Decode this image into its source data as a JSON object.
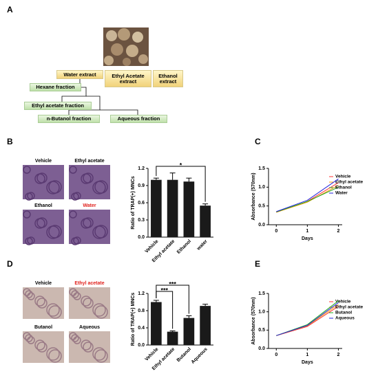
{
  "panel_labels": [
    "A",
    "B",
    "C",
    "D",
    "E"
  ],
  "diagram": {
    "nodes": [
      {
        "label": "Water extract",
        "kind": "extract"
      },
      {
        "label": "Ethyl Acetate extract",
        "kind": "extract"
      },
      {
        "label": "Ethanol extract",
        "kind": "extract"
      },
      {
        "label": "Hexane fraction",
        "kind": "fraction"
      },
      {
        "label": "Ethyl acetate fraction",
        "kind": "fraction"
      },
      {
        "label": "n-Butanol fraction",
        "kind": "fraction"
      },
      {
        "label": "Aqueous fraction",
        "kind": "fraction"
      }
    ]
  },
  "micrographs": {
    "B": [
      {
        "label": "Vehicle",
        "color": "#000000"
      },
      {
        "label": "Ethyl acetate",
        "color": "#000000"
      },
      {
        "label": "Ethanol",
        "color": "#000000"
      },
      {
        "label": "Water",
        "color": "#e0201b"
      }
    ],
    "D": [
      {
        "label": "Vehicle",
        "color": "#000000"
      },
      {
        "label": "Ethyl acetate",
        "color": "#e0201b"
      },
      {
        "label": "Butanol",
        "color": "#000000"
      },
      {
        "label": "Aqueous",
        "color": "#000000"
      }
    ]
  },
  "chart_data": [
    {
      "type": "bar",
      "y_label": "Ratio of TRAP(+) MNCs",
      "categories": [
        "Vehicle",
        "Ethyl acetate",
        "Ethanol",
        "water"
      ],
      "values": [
        1.0,
        1.0,
        0.97,
        0.55
      ],
      "errors": [
        0.03,
        0.12,
        0.06,
        0.03
      ],
      "color": "#1a1a1a",
      "ylim": [
        0,
        1.2
      ],
      "yticks": [
        {
          "value": 0,
          "label": "0.0"
        },
        0.3,
        0.6,
        0.9,
        1.2
      ],
      "significance": [
        {
          "label": "*",
          "between": [
            "Vehicle",
            "water"
          ]
        }
      ]
    },
    {
      "type": "line",
      "x_label": "Days",
      "y_label": "Absorbance (570nm)",
      "x": [
        0,
        1,
        2
      ],
      "series": [
        {
          "name": "Vehicle",
          "color": "#ff3030",
          "values": [
            0.33,
            0.62,
            1.12
          ]
        },
        {
          "name": "Ethyl acetate",
          "color": "#ff9900",
          "values": [
            0.33,
            0.6,
            1.05
          ]
        },
        {
          "name": "Ethanol",
          "color": "#22aa22",
          "values": [
            0.34,
            0.62,
            1.0
          ]
        },
        {
          "name": "Water",
          "color": "#2222dd",
          "values": [
            0.35,
            0.65,
            1.22
          ]
        }
      ],
      "xlim": [
        -0.25,
        2.3
      ],
      "xticks": [
        0,
        1,
        2
      ],
      "ylim": [
        0,
        1.5
      ],
      "yticks": [
        {
          "value": 0,
          "label": "0.0"
        },
        0.5,
        {
          "value": 1,
          "label": "1.0"
        },
        1.5
      ],
      "legend": "upper right"
    },
    {
      "type": "bar",
      "y_label": "Ratio of TRAP(+) MNCs",
      "categories": [
        "Vehicle",
        "Ethyl acetate",
        "Butanol",
        "Aqueous"
      ],
      "values": [
        1.0,
        0.31,
        0.63,
        0.91
      ],
      "errors": [
        0.04,
        0.02,
        0.05,
        0.04
      ],
      "color": "#1a1a1a",
      "ylim": [
        0,
        1.2
      ],
      "yticks": [
        {
          "value": 0,
          "label": "0.0"
        },
        0.4,
        0.8,
        1.2
      ],
      "significance": [
        {
          "label": "***",
          "between": [
            "Vehicle",
            "Ethyl acetate"
          ]
        },
        {
          "label": "***",
          "between": [
            "Vehicle",
            "Butanol"
          ]
        }
      ]
    },
    {
      "type": "line",
      "x_label": "Days",
      "y_label": "Absorbance (570nm)",
      "x": [
        0,
        1,
        2
      ],
      "series": [
        {
          "name": "Vehicle",
          "color": "#ff3030",
          "values": [
            0.35,
            0.6,
            1.15
          ]
        },
        {
          "name": "Ethyl acetate",
          "color": "#ff9900",
          "values": [
            0.35,
            0.62,
            1.2
          ]
        },
        {
          "name": "Butanol",
          "color": "#22aa22",
          "values": [
            0.35,
            0.65,
            1.3
          ]
        },
        {
          "name": "Aqueous",
          "color": "#2222dd",
          "values": [
            0.35,
            0.63,
            1.25
          ]
        }
      ],
      "xlim": [
        -0.25,
        2.3
      ],
      "xticks": [
        0,
        1,
        2
      ],
      "ylim": [
        0,
        1.5
      ],
      "yticks": [
        {
          "value": 0,
          "label": "0.0"
        },
        0.5,
        {
          "value": 1,
          "label": "1.0"
        },
        1.5
      ],
      "legend": "upper right"
    }
  ]
}
